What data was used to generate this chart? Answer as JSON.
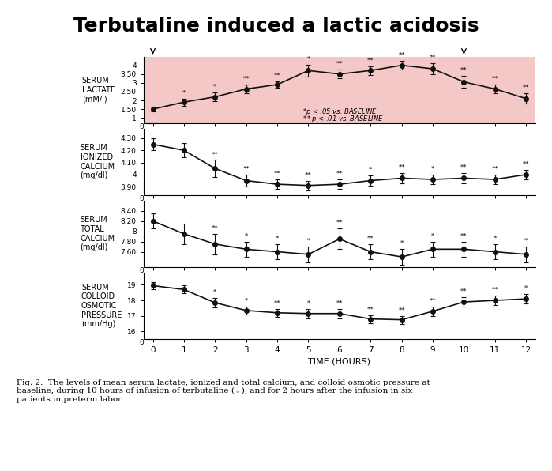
{
  "title": "Terbutaline induced a lactic acidosis",
  "title_fontsize": 18,
  "title_fontweight": "bold",
  "x": [
    0,
    1,
    2,
    3,
    4,
    5,
    6,
    7,
    8,
    9,
    10,
    11,
    12
  ],
  "xlabel": "TIME (HOURS)",
  "lactate_y": [
    1.5,
    1.9,
    2.2,
    2.65,
    2.9,
    3.7,
    3.5,
    3.7,
    4.0,
    3.8,
    3.05,
    2.65,
    2.1
  ],
  "lactate_err": [
    0.15,
    0.2,
    0.25,
    0.25,
    0.2,
    0.35,
    0.25,
    0.25,
    0.25,
    0.3,
    0.35,
    0.25,
    0.3
  ],
  "lactate_sig": [
    "",
    "*",
    "*",
    "**",
    "**",
    "*",
    "**",
    "**",
    "**",
    "**",
    "**",
    "**",
    "**"
  ],
  "lactate_ylabel_lines": [
    "SERUM",
    "LACTATE",
    "(mM/l)"
  ],
  "lactate_yticks": [
    1.0,
    1.5,
    2.0,
    2.5,
    3.0,
    3.5,
    4.0
  ],
  "lactate_ylim": [
    0.7,
    4.5
  ],
  "lactate_bg": "#f5c8c8",
  "icalcium_y": [
    4.25,
    4.2,
    4.05,
    3.95,
    3.92,
    3.91,
    3.92,
    3.95,
    3.97,
    3.96,
    3.97,
    3.96,
    4.0
  ],
  "icalcium_err": [
    0.05,
    0.06,
    0.07,
    0.05,
    0.04,
    0.04,
    0.04,
    0.04,
    0.04,
    0.04,
    0.04,
    0.04,
    0.04
  ],
  "icalcium_sig": [
    "",
    "",
    "**",
    "**",
    "**",
    "**",
    "**",
    "*",
    "**",
    "*",
    "**",
    "**",
    "**"
  ],
  "icalcium_ylabel_lines": [
    "SERUM",
    "IONIZED",
    "CALCIUM",
    "(mg/dl)"
  ],
  "icalcium_yticks": [
    3.9,
    4.0,
    4.1,
    4.2,
    4.3
  ],
  "icalcium_ylim": [
    3.83,
    4.38
  ],
  "tcalcium_y": [
    8.2,
    7.95,
    7.75,
    7.65,
    7.6,
    7.55,
    7.85,
    7.6,
    7.5,
    7.65,
    7.65,
    7.6,
    7.55
  ],
  "tcalcium_err": [
    0.15,
    0.2,
    0.2,
    0.15,
    0.15,
    0.15,
    0.2,
    0.15,
    0.15,
    0.15,
    0.15,
    0.15,
    0.15
  ],
  "tcalcium_sig": [
    "",
    "",
    "**",
    "*",
    "*",
    "*",
    "**",
    "**",
    "*",
    "*",
    "**",
    "*",
    "*"
  ],
  "tcalcium_ylabel_lines": [
    "SERUM",
    "TOTAL",
    "CALCIUM",
    "(mg/dl)"
  ],
  "tcalcium_yticks": [
    7.6,
    7.8,
    8.0,
    8.2,
    8.4
  ],
  "tcalcium_ylim": [
    7.3,
    8.6
  ],
  "cop_y": [
    18.95,
    18.7,
    17.85,
    17.35,
    17.2,
    17.15,
    17.15,
    16.8,
    16.75,
    17.3,
    17.9,
    18.0,
    18.1
  ],
  "cop_err": [
    0.25,
    0.25,
    0.3,
    0.25,
    0.25,
    0.3,
    0.3,
    0.25,
    0.25,
    0.3,
    0.3,
    0.3,
    0.3
  ],
  "cop_sig": [
    "",
    "",
    "*",
    "*",
    "**",
    "*",
    "**",
    "**",
    "**",
    "**",
    "**",
    "**",
    "*"
  ],
  "cop_ylabel_lines": [
    "SERUM",
    "COLLOID",
    "OSMOTIC",
    "PRESSURE",
    "(mm/Hg)"
  ],
  "cop_yticks": [
    16.0,
    17.0,
    18.0,
    19.0
  ],
  "cop_ylim": [
    15.5,
    19.8
  ],
  "line_color": "#111111",
  "markersize": 4,
  "linewidth": 1.2,
  "caption_bold": "Fig. 2.",
  "caption_rest": " The levels of mean serum lactate, ionized and total calcium, and colloid osmotic pressure at baseline, during 10 hours of infusion of terbutaline (↓), and for 2 hours after the infusion in six patients in preterm labor."
}
